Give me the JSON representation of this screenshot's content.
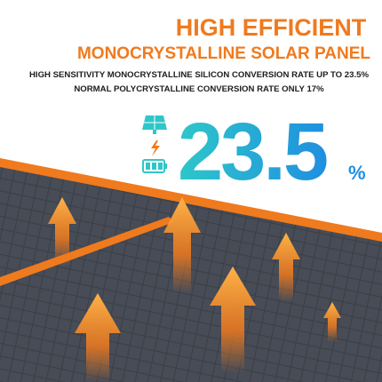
{
  "header": {
    "title": "HIGH EFFICIENT",
    "subtitle": "MONOCRYSTALLINE SOLAR PANEL"
  },
  "lines": [
    "HIGH SENSITIVITY MONOCRYSTALLINE SILICON CONVERSION RATE UP TO 23.5%",
    "NORMAL POLYCRYSTALLINE CONVERSION RATE ONLY 17%"
  ],
  "highlight": {
    "value": "23.5",
    "unit": "%"
  }
}
